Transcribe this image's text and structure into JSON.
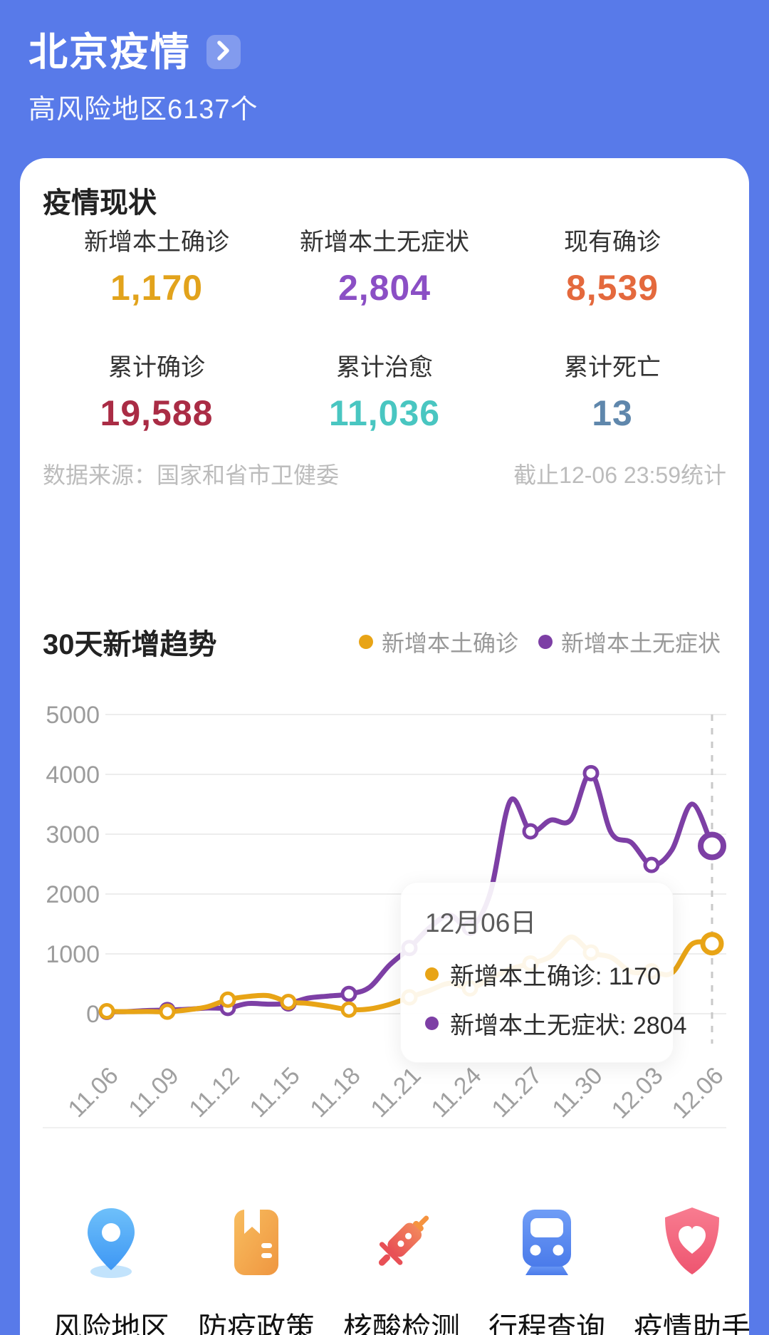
{
  "header": {
    "title": "北京疫情",
    "chevron_icon": "chevron-right-icon",
    "subtitle": "高风险地区6137个"
  },
  "overview": {
    "section_title": "疫情现状",
    "stats": [
      {
        "key": "new-local-confirmed",
        "label": "新增本土确诊",
        "value": "1,170",
        "color": "#E2A31C"
      },
      {
        "key": "new-local-asymptomatic",
        "label": "新增本土无症状",
        "value": "2,804",
        "color": "#8B4FC5"
      },
      {
        "key": "current-confirmed",
        "label": "现有确诊",
        "value": "8,539",
        "color": "#E4693D"
      },
      {
        "key": "total-confirmed",
        "label": "累计确诊",
        "value": "19,588",
        "color": "#AA2C45"
      },
      {
        "key": "total-cured",
        "label": "累计治愈",
        "value": "11,036",
        "color": "#49C6C1"
      },
      {
        "key": "total-deaths",
        "label": "累计死亡",
        "value": "13",
        "color": "#5F87AC"
      }
    ],
    "source_left": "数据来源：国家和省市卫健委",
    "source_right": "截止12-06 23:59统计"
  },
  "trend": {
    "title": "30天新增趋势",
    "legend": [
      {
        "label": "新增本土确诊",
        "color": "#E8A416"
      },
      {
        "label": "新增本土无症状",
        "color": "#7D3FA5"
      }
    ]
  },
  "chart_data": {
    "type": "line",
    "title": "30天新增趋势",
    "x": [
      "11.06",
      "11.07",
      "11.08",
      "11.09",
      "11.10",
      "11.11",
      "11.12",
      "11.13",
      "11.14",
      "11.15",
      "11.16",
      "11.17",
      "11.18",
      "11.19",
      "11.20",
      "11.21",
      "11.22",
      "11.23",
      "11.24",
      "11.25",
      "11.26",
      "11.27",
      "11.28",
      "11.29",
      "11.30",
      "12.01",
      "12.02",
      "12.03",
      "12.04",
      "12.05",
      "12.06"
    ],
    "x_tick_labels": [
      "11.06",
      "11.09",
      "11.12",
      "11.15",
      "11.18",
      "11.21",
      "11.24",
      "11.27",
      "11.30",
      "12.03",
      "12.06"
    ],
    "y_ticks": [
      0,
      1000,
      2000,
      3000,
      4000,
      5000
    ],
    "ylim": [
      0,
      5000
    ],
    "grid": true,
    "legend_position": "top-right",
    "marker_every": 3,
    "highlight_x": "12.06",
    "series": [
      {
        "name": "新增本土确诊",
        "color": "#E8A416",
        "values": [
          41,
          34,
          37,
          34,
          64,
          118,
          235,
          288,
          302,
          197,
          172,
          123,
          69,
          79,
          154,
          274,
          388,
          509,
          424,
          586,
          747,
          840,
          957,
          1282,
          1023,
          942,
          699,
          708,
          679,
          1163,
          1170
        ]
      },
      {
        "name": "新增本土无症状",
        "color": "#7D3FA5",
        "values": [
          32,
          36,
          54,
          61,
          74,
          95,
          97,
          170,
          159,
          172,
          262,
          295,
          330,
          436,
          808,
          1098,
          1438,
          1648,
          1436,
          2009,
          3560,
          3048,
          3236,
          3240,
          4020,
          3026,
          2859,
          2486,
          2731,
          3503,
          2804
        ]
      }
    ]
  },
  "tooltip": {
    "date": "12月06日",
    "sep": ": ",
    "items": [
      {
        "label": "新增本土确诊",
        "value": "1170",
        "color": "#E8A416"
      },
      {
        "label": "新增本土无症状",
        "value": "2804",
        "color": "#7D3FA5"
      }
    ]
  },
  "nav": {
    "items": [
      {
        "key": "risk-areas",
        "icon": "location-pin-icon",
        "label": "风险地区"
      },
      {
        "key": "policy",
        "icon": "policy-book-icon",
        "label": "防疫政策"
      },
      {
        "key": "nucleic-test",
        "icon": "syringe-icon",
        "label": "核酸检测"
      },
      {
        "key": "trip-query",
        "icon": "train-icon",
        "label": "行程查询"
      },
      {
        "key": "epidemic-helper",
        "icon": "shield-heart-icon",
        "label": "疫情助手"
      }
    ]
  },
  "colors": {
    "page_background": "#587AE9",
    "card_background": "#FFFFFF",
    "grid_line": "#EDEDED",
    "dashed_guide": "#C9C9C9",
    "axis_text": "#A0A0A0",
    "source_text": "#BCBCBC"
  }
}
